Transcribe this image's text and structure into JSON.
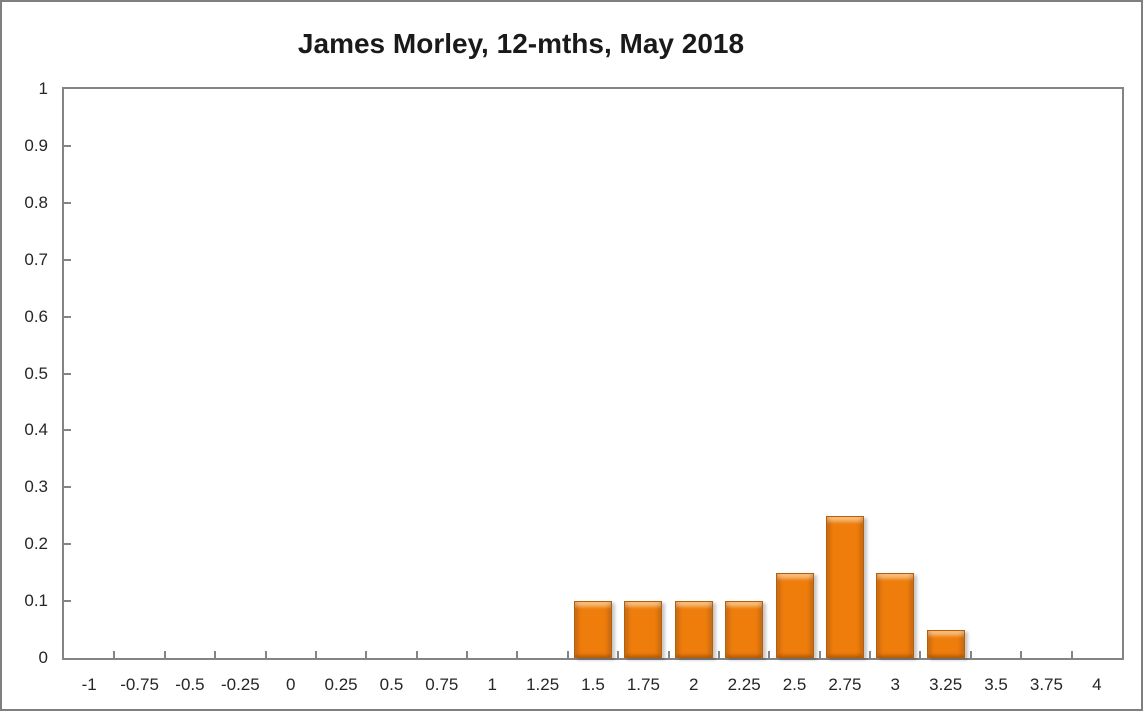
{
  "chart_data": {
    "type": "bar",
    "title": "James Morley, 12-mths, May 2018",
    "xlabel": "",
    "ylabel": "",
    "categories": [
      "-1",
      "-0.75",
      "-0.5",
      "-0.25",
      "0",
      "0.25",
      "0.5",
      "0.75",
      "1",
      "1.25",
      "1.5",
      "1.75",
      "2",
      "2.25",
      "2.5",
      "2.75",
      "3",
      "3.25",
      "3.5",
      "3.75",
      "4"
    ],
    "values": [
      0,
      0,
      0,
      0,
      0,
      0,
      0,
      0,
      0,
      0,
      0.1,
      0.1,
      0.1,
      0.1,
      0.15,
      0.25,
      0.15,
      0.05,
      0,
      0,
      0
    ],
    "ylim": [
      0,
      1
    ],
    "y_tick_labels": [
      "1",
      "0.9",
      "0.8",
      "0.7",
      "0.6",
      "0.5",
      "0.4",
      "0.3",
      "0.2",
      "0.1",
      "0"
    ],
    "grid": false,
    "legend_position": "none",
    "colors": {
      "bar_fill": "#EE7D0C",
      "bar_highlight": "#F9A33F",
      "bar_border": "#BC5E00",
      "axis_line": "#848484",
      "tick_text": "#262626",
      "title_text": "#1A1A1A"
    }
  }
}
